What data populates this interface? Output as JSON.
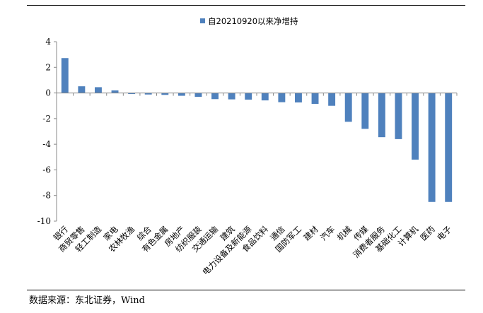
{
  "source_note": "数据来源：东北证券，Wind",
  "chart_data": {
    "type": "bar",
    "legend": "自20210920以来净增持",
    "legend_position": "top-center",
    "ylim": [
      -10,
      4
    ],
    "yticks": [
      4,
      2,
      0,
      -2,
      -4,
      -6,
      -8,
      -10
    ],
    "grid": false,
    "color": "#4f81bd",
    "categories": [
      "银行",
      "商贸零售",
      "轻工制造",
      "家电",
      "农林牧渔",
      "综合",
      "有色金属",
      "房地产",
      "纺织服装",
      "交通运输",
      "建筑",
      "电力设备及新能源",
      "食品饮料",
      "通信",
      "国防军工",
      "建材",
      "汽车",
      "机械",
      "传媒",
      "消费者服务",
      "基础化工",
      "计算机",
      "医药",
      "电子"
    ],
    "values": [
      2.72,
      0.52,
      0.45,
      0.2,
      -0.08,
      -0.12,
      -0.15,
      -0.22,
      -0.3,
      -0.48,
      -0.5,
      -0.52,
      -0.58,
      -0.72,
      -0.74,
      -0.85,
      -1.0,
      -2.25,
      -2.8,
      -3.45,
      -3.6,
      -5.2,
      -8.5,
      -8.5
    ]
  }
}
